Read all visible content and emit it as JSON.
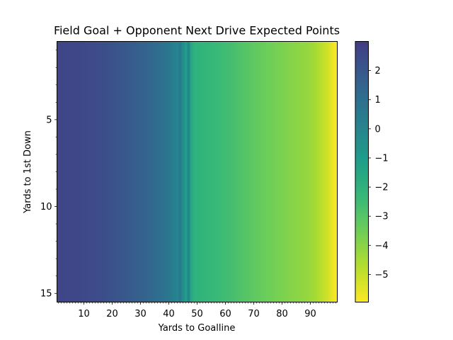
{
  "chart_data": {
    "type": "heatmap",
    "title": "Field Goal + Opponent Next Drive Expected Points",
    "xlabel": "Yards to Goalline",
    "ylabel": "Yards to 1st Down",
    "x_range": [
      1,
      99
    ],
    "y_range": [
      1,
      15
    ],
    "x_ticks": [
      10,
      20,
      30,
      40,
      50,
      60,
      70,
      80,
      90
    ],
    "y_ticks": [
      5,
      10,
      15
    ],
    "colormap": "viridis_r",
    "clim": [
      -5.95,
      3.0
    ],
    "colorbar_ticks": [
      2,
      1,
      0,
      -1,
      -2,
      -3,
      -4,
      -5
    ],
    "colorbar_tick_labels": [
      "2",
      "1",
      "0",
      "−1",
      "−2",
      "−3",
      "−4",
      "−5"
    ],
    "note": "values vary with yards to goalline only (constant down each column)",
    "columns": [
      {
        "x": 1,
        "value": 2.65
      },
      {
        "x": 2,
        "value": 2.65
      },
      {
        "x": 3,
        "value": 2.64
      },
      {
        "x": 4,
        "value": 2.63
      },
      {
        "x": 5,
        "value": 2.62
      },
      {
        "x": 6,
        "value": 2.61
      },
      {
        "x": 7,
        "value": 2.6
      },
      {
        "x": 8,
        "value": 2.58
      },
      {
        "x": 9,
        "value": 2.56
      },
      {
        "x": 10,
        "value": 2.54
      },
      {
        "x": 11,
        "value": 2.52
      },
      {
        "x": 12,
        "value": 2.5
      },
      {
        "x": 13,
        "value": 2.47
      },
      {
        "x": 14,
        "value": 2.44
      },
      {
        "x": 15,
        "value": 2.41
      },
      {
        "x": 16,
        "value": 2.37
      },
      {
        "x": 17,
        "value": 2.33
      },
      {
        "x": 18,
        "value": 2.29
      },
      {
        "x": 19,
        "value": 2.24
      },
      {
        "x": 20,
        "value": 2.19
      },
      {
        "x": 21,
        "value": 2.14
      },
      {
        "x": 22,
        "value": 2.08
      },
      {
        "x": 23,
        "value": 2.02
      },
      {
        "x": 24,
        "value": 1.96
      },
      {
        "x": 25,
        "value": 1.9
      },
      {
        "x": 26,
        "value": 1.84
      },
      {
        "x": 27,
        "value": 1.78
      },
      {
        "x": 28,
        "value": 1.72
      },
      {
        "x": 29,
        "value": 1.66
      },
      {
        "x": 30,
        "value": 1.6
      },
      {
        "x": 31,
        "value": 1.53
      },
      {
        "x": 32,
        "value": 1.46
      },
      {
        "x": 33,
        "value": 1.38
      },
      {
        "x": 34,
        "value": 1.3
      },
      {
        "x": 35,
        "value": 1.2
      },
      {
        "x": 36,
        "value": 1.1
      },
      {
        "x": 37,
        "value": 1.0
      },
      {
        "x": 38,
        "value": 0.88
      },
      {
        "x": 39,
        "value": 0.75
      },
      {
        "x": 40,
        "value": 0.6
      },
      {
        "x": 41,
        "value": 0.42
      },
      {
        "x": 42,
        "value": 0.22
      },
      {
        "x": 43,
        "value": 0.0
      },
      {
        "x": 44,
        "value": 0.55
      },
      {
        "x": 45,
        "value": -0.35
      },
      {
        "x": 46,
        "value": -1.05
      },
      {
        "x": 47,
        "value": -0.1
      },
      {
        "x": 48,
        "value": -1.6
      },
      {
        "x": 49,
        "value": -2.0
      },
      {
        "x": 50,
        "value": -2.05
      },
      {
        "x": 51,
        "value": -2.1
      },
      {
        "x": 52,
        "value": -2.15
      },
      {
        "x": 53,
        "value": -2.2
      },
      {
        "x": 54,
        "value": -2.25
      },
      {
        "x": 55,
        "value": -2.3
      },
      {
        "x": 56,
        "value": -2.35
      },
      {
        "x": 57,
        "value": -2.4
      },
      {
        "x": 58,
        "value": -2.45
      },
      {
        "x": 59,
        "value": -2.5
      },
      {
        "x": 60,
        "value": -2.55
      },
      {
        "x": 61,
        "value": -2.6
      },
      {
        "x": 62,
        "value": -2.65
      },
      {
        "x": 63,
        "value": -2.72
      },
      {
        "x": 64,
        "value": -2.8
      },
      {
        "x": 65,
        "value": -2.88
      },
      {
        "x": 66,
        "value": -2.95
      },
      {
        "x": 67,
        "value": -3.02
      },
      {
        "x": 68,
        "value": -3.08
      },
      {
        "x": 69,
        "value": -3.14
      },
      {
        "x": 70,
        "value": -3.2
      },
      {
        "x": 71,
        "value": -3.26
      },
      {
        "x": 72,
        "value": -3.32
      },
      {
        "x": 73,
        "value": -3.38
      },
      {
        "x": 74,
        "value": -3.44
      },
      {
        "x": 75,
        "value": -3.5
      },
      {
        "x": 76,
        "value": -3.55
      },
      {
        "x": 77,
        "value": -3.6
      },
      {
        "x": 78,
        "value": -3.65
      },
      {
        "x": 79,
        "value": -3.7
      },
      {
        "x": 80,
        "value": -3.75
      },
      {
        "x": 81,
        "value": -3.8
      },
      {
        "x": 82,
        "value": -3.85
      },
      {
        "x": 83,
        "value": -3.9
      },
      {
        "x": 84,
        "value": -3.95
      },
      {
        "x": 85,
        "value": -4.0
      },
      {
        "x": 86,
        "value": -4.05
      },
      {
        "x": 87,
        "value": -4.1
      },
      {
        "x": 88,
        "value": -4.15
      },
      {
        "x": 89,
        "value": -4.2
      },
      {
        "x": 90,
        "value": -4.28
      },
      {
        "x": 91,
        "value": -4.36
      },
      {
        "x": 92,
        "value": -4.5
      },
      {
        "x": 93,
        "value": -4.65
      },
      {
        "x": 94,
        "value": -4.8
      },
      {
        "x": 95,
        "value": -5.0
      },
      {
        "x": 96,
        "value": -5.2
      },
      {
        "x": 97,
        "value": -5.45
      },
      {
        "x": 98,
        "value": -5.7
      },
      {
        "x": 99,
        "value": -5.9
      }
    ]
  }
}
